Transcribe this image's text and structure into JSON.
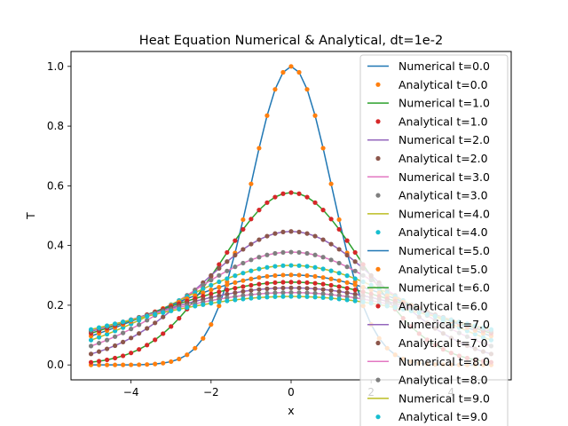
{
  "chart_data": {
    "type": "line",
    "title": "Heat Equation Numerical & Analytical, dt=1e-2",
    "xlabel": "x",
    "ylabel": "T",
    "xlim": [
      -5.5,
      5.5
    ],
    "ylim": [
      -0.05,
      1.05
    ],
    "xticks": [
      -4,
      -2,
      0,
      2,
      4
    ],
    "xtick_labels": [
      "−4",
      "−2",
      "0",
      "2",
      "4"
    ],
    "yticks": [
      0.0,
      0.2,
      0.4,
      0.6,
      0.8,
      1.0
    ],
    "ytick_labels": [
      "0.0",
      "0.2",
      "0.4",
      "0.6",
      "0.8",
      "1.0"
    ],
    "grid": false,
    "legend_position": "top-right",
    "x_domain": [
      -5,
      5
    ],
    "initial_condition_sigma": 1,
    "num_points": 51,
    "series": [
      {
        "name": "Numerical t=0.0",
        "kind": "line",
        "t": 0,
        "color": "#1f77b4"
      },
      {
        "name": "Analytical t=0.0",
        "kind": "points",
        "t": 0,
        "color": "#ff7f0e"
      },
      {
        "name": "Numerical t=1.0",
        "kind": "line",
        "t": 1,
        "color": "#2ca02c"
      },
      {
        "name": "Analytical t=1.0",
        "kind": "points",
        "t": 1,
        "color": "#d62728"
      },
      {
        "name": "Numerical t=2.0",
        "kind": "line",
        "t": 2,
        "color": "#9467bd"
      },
      {
        "name": "Analytical t=2.0",
        "kind": "points",
        "t": 2,
        "color": "#8c564b"
      },
      {
        "name": "Numerical t=3.0",
        "kind": "line",
        "t": 3,
        "color": "#e377c2"
      },
      {
        "name": "Analytical t=3.0",
        "kind": "points",
        "t": 3,
        "color": "#7f7f7f"
      },
      {
        "name": "Numerical t=4.0",
        "kind": "line",
        "t": 4,
        "color": "#bcbd22"
      },
      {
        "name": "Analytical t=4.0",
        "kind": "points",
        "t": 4,
        "color": "#17becf"
      },
      {
        "name": "Numerical t=5.0",
        "kind": "line",
        "t": 5,
        "color": "#1f77b4"
      },
      {
        "name": "Analytical t=5.0",
        "kind": "points",
        "t": 5,
        "color": "#ff7f0e"
      },
      {
        "name": "Numerical t=6.0",
        "kind": "line",
        "t": 6,
        "color": "#2ca02c"
      },
      {
        "name": "Analytical t=6.0",
        "kind": "points",
        "t": 6,
        "color": "#d62728"
      },
      {
        "name": "Numerical t=7.0",
        "kind": "line",
        "t": 7,
        "color": "#9467bd"
      },
      {
        "name": "Analytical t=7.0",
        "kind": "points",
        "t": 7,
        "color": "#8c564b"
      },
      {
        "name": "Numerical t=8.0",
        "kind": "line",
        "t": 8,
        "color": "#e377c2"
      },
      {
        "name": "Analytical t=8.0",
        "kind": "points",
        "t": 8,
        "color": "#7f7f7f"
      },
      {
        "name": "Numerical t=9.0",
        "kind": "line",
        "t": 9,
        "color": "#bcbd22"
      },
      {
        "name": "Analytical t=9.0",
        "kind": "points",
        "t": 9,
        "color": "#17becf"
      }
    ]
  }
}
